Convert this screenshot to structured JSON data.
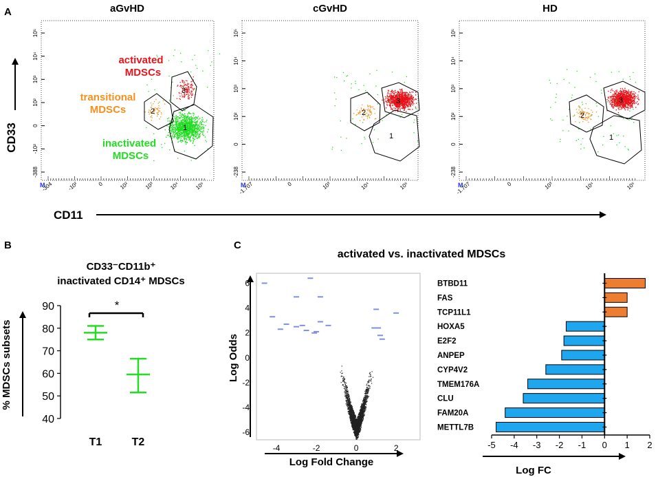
{
  "panel_a": {
    "letter": "A",
    "y_axis_label": "CD33",
    "x_axis_label": "CD11",
    "plots": [
      {
        "title": "aGvHD",
        "y_ticks": [
          "10⁵",
          "10⁴",
          "10³",
          "10²",
          "0",
          "-10²",
          "-388"
        ],
        "x_ticks": [
          "-304",
          "-10²",
          "0",
          "10²",
          "10³",
          "10⁴",
          "10⁵"
        ],
        "gate_labels": [
          "3",
          "2",
          "1"
        ],
        "annotations": {
          "activated": [
            "activated",
            "MDSCs"
          ],
          "transitional": [
            "transitional",
            "MDSCs"
          ],
          "inactivated": [
            "inactivated",
            "MDSCs"
          ]
        },
        "corner": "M"
      },
      {
        "title": "cGvHD",
        "y_ticks": [
          "10⁵",
          "10⁴",
          "10³",
          "10²",
          "0",
          "-238"
        ],
        "x_ticks": [
          "-1.707",
          "0",
          "10³",
          "10⁴",
          "10⁵"
        ],
        "gate_labels": [
          "3",
          "2",
          "1"
        ],
        "corner": "M"
      },
      {
        "title": "HD",
        "y_ticks": [
          "10⁵",
          "10⁴",
          "10³",
          "10²",
          "0",
          "-238"
        ],
        "x_ticks": [
          "-1.707",
          "0",
          "10³",
          "10⁴",
          "10⁵"
        ],
        "gate_labels": [
          "3",
          "2",
          "1"
        ],
        "corner": "M"
      }
    ],
    "colors": {
      "activated": "#e8141b",
      "transitional": "#f5901e",
      "inactivated": "#22dd22"
    }
  },
  "chart_data": [
    {
      "type": "scatter",
      "panel": "B",
      "title_lines": [
        "CD33⁻CD11b⁺",
        "inactivated CD14⁺ MDSCs"
      ],
      "ylabel": "% MDSCs subsets",
      "ylim": [
        40,
        90
      ],
      "yticks": [
        40,
        50,
        60,
        70,
        80,
        90
      ],
      "categories": [
        "T1",
        "T2"
      ],
      "mean": [
        78,
        59.5
      ],
      "lower": [
        75,
        51.5
      ],
      "upper": [
        81,
        66.5
      ],
      "significance": "*",
      "color": "#22dd22"
    },
    {
      "type": "scatter",
      "panel": "C-volcano",
      "title": "activated vs. inactivated MDSCs",
      "xlabel": "Log Fold Change",
      "ylabel": "Log Odds",
      "xlim": [
        -5,
        3.2
      ],
      "ylim": [
        -6.6,
        6.8
      ],
      "xticks": [
        -4,
        -2,
        0,
        2
      ],
      "yticks": [
        -6,
        -4,
        -2,
        0,
        2,
        4,
        6
      ],
      "highlighted_points": [
        [
          -4.6,
          6.0
        ],
        [
          -2.3,
          6.4
        ],
        [
          -3.0,
          4.9
        ],
        [
          -1.8,
          4.9
        ],
        [
          -4.2,
          3.3
        ],
        [
          -3.5,
          2.7
        ],
        [
          -3.0,
          2.5
        ],
        [
          -2.7,
          2.6
        ],
        [
          -2.5,
          2.2
        ],
        [
          -2.1,
          2.0
        ],
        [
          -2.0,
          2.1
        ],
        [
          -1.8,
          2.9
        ],
        [
          -3.8,
          2.3
        ],
        [
          -1.4,
          2.6
        ],
        [
          1.0,
          3.9
        ],
        [
          0.9,
          2.4
        ],
        [
          1.1,
          2.4
        ],
        [
          2.0,
          3.6
        ],
        [
          1.2,
          1.8
        ],
        [
          1.3,
          1.5
        ]
      ],
      "highlight_color": "#7f8fe0",
      "background_color": "#222222"
    },
    {
      "type": "bar",
      "panel": "C-bars",
      "orientation": "horizontal",
      "xlabel": "Log FC",
      "xlim": [
        -5,
        2
      ],
      "xticks": [
        -5,
        -4,
        -3,
        -2,
        -1,
        0,
        1,
        2
      ],
      "categories": [
        "BTBD11",
        "FAS",
        "TCP11L1",
        "HOXA5",
        "E2F2",
        "ANPEP",
        "CYP4V2",
        "TMEM176A",
        "CLU",
        "FAM20A",
        "METTL7B"
      ],
      "values": [
        1.8,
        1.0,
        1.0,
        -1.7,
        -1.8,
        -1.9,
        -2.6,
        -3.4,
        -3.6,
        -4.4,
        -4.8
      ],
      "positive_color": "#ed7d31",
      "negative_color": "#1ea7ef"
    }
  ],
  "panel_b": {
    "letter": "B"
  },
  "panel_c": {
    "letter": "C"
  }
}
